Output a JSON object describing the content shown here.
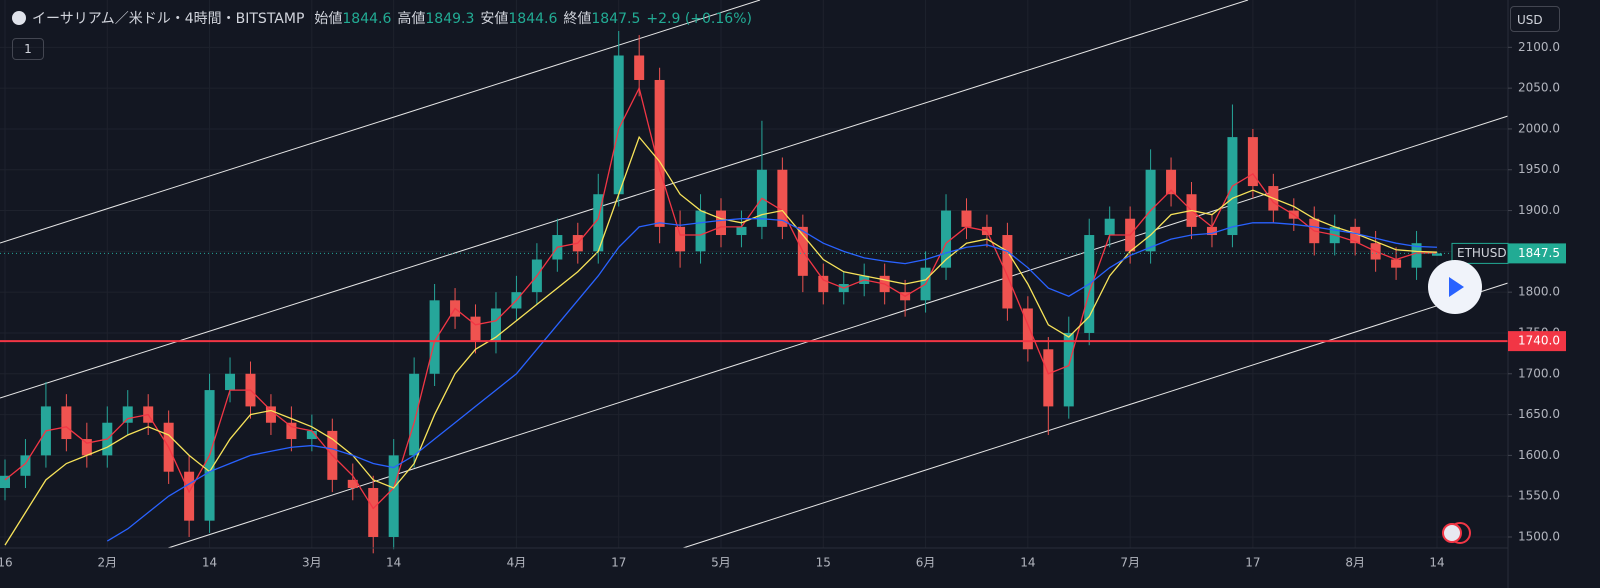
{
  "header": {
    "title": "イーサリアム／米ドル・4時間・BITSTAMP",
    "open_label": "始値",
    "high_label": "高値",
    "low_label": "安値",
    "close_label": "終値",
    "change": "+2.9 (+0.16%)",
    "interval_button": "1"
  },
  "chart_data": {
    "type": "candlestick",
    "categories": [
      "16",
      null,
      null,
      null,
      null,
      "2月",
      null,
      null,
      null,
      null,
      "14",
      null,
      null,
      null,
      null,
      "3月",
      null,
      null,
      null,
      "14",
      null,
      null,
      null,
      null,
      null,
      "4月",
      null,
      null,
      null,
      null,
      "17",
      null,
      null,
      null,
      null,
      "5月",
      null,
      null,
      null,
      null,
      "15",
      null,
      null,
      null,
      null,
      "6月",
      null,
      null,
      null,
      null,
      "14",
      null,
      null,
      null,
      null,
      "7月",
      null,
      null,
      null,
      null,
      null,
      "17",
      null,
      null,
      null,
      null,
      "8月",
      null,
      null,
      null,
      "14"
    ],
    "candles": {
      "up_color": "#26a69a",
      "down_color": "#ef5350",
      "open": [
        1560,
        1575,
        1600,
        1660,
        1620,
        1600,
        1640,
        1660,
        1640,
        1580,
        1520,
        1680,
        1700,
        1660,
        1640,
        1620,
        1630,
        1570,
        1560,
        1500,
        1600,
        1700,
        1790,
        1770,
        1740,
        1780,
        1800,
        1840,
        1870,
        1850,
        1920,
        2090,
        2060,
        1880,
        1850,
        1900,
        1870,
        1880,
        1950,
        1880,
        1820,
        1800,
        1810,
        1820,
        1800,
        1790,
        1830,
        1900,
        1880,
        1870,
        1780,
        1730,
        1660,
        1750,
        1870,
        1890,
        1850,
        1950,
        1920,
        1880,
        1870,
        1990,
        1930,
        1900,
        1890,
        1860,
        1880,
        1860,
        1840,
        1830,
        1844.6
      ],
      "high": [
        1595,
        1620,
        1690,
        1675,
        1640,
        1660,
        1680,
        1675,
        1655,
        1600,
        1700,
        1720,
        1715,
        1675,
        1660,
        1650,
        1645,
        1590,
        1575,
        1620,
        1720,
        1810,
        1805,
        1785,
        1800,
        1820,
        1860,
        1890,
        1885,
        1945,
        2120,
        2115,
        2075,
        1900,
        1920,
        1915,
        1900,
        2010,
        1965,
        1895,
        1835,
        1825,
        1835,
        1835,
        1815,
        1850,
        1920,
        1915,
        1895,
        1885,
        1795,
        1745,
        1770,
        1890,
        1905,
        1905,
        1975,
        1965,
        1935,
        1895,
        2030,
        2000,
        1945,
        1915,
        1905,
        1895,
        1890,
        1875,
        1855,
        1875,
        1849.3
      ],
      "low": [
        1545,
        1560,
        1585,
        1605,
        1585,
        1585,
        1625,
        1625,
        1565,
        1500,
        1505,
        1665,
        1645,
        1625,
        1605,
        1605,
        1555,
        1545,
        1480,
        1485,
        1585,
        1685,
        1755,
        1725,
        1725,
        1765,
        1785,
        1825,
        1835,
        1835,
        1905,
        2040,
        1860,
        1830,
        1835,
        1855,
        1855,
        1865,
        1865,
        1800,
        1785,
        1785,
        1795,
        1785,
        1770,
        1775,
        1815,
        1865,
        1855,
        1765,
        1715,
        1625,
        1645,
        1735,
        1855,
        1835,
        1835,
        1905,
        1865,
        1855,
        1855,
        1915,
        1885,
        1875,
        1845,
        1845,
        1845,
        1825,
        1815,
        1815,
        1844.6
      ],
      "close": [
        1575,
        1600,
        1660,
        1620,
        1600,
        1640,
        1660,
        1640,
        1580,
        1520,
        1680,
        1700,
        1660,
        1640,
        1620,
        1630,
        1570,
        1560,
        1500,
        1600,
        1700,
        1790,
        1770,
        1740,
        1780,
        1800,
        1840,
        1870,
        1850,
        1920,
        2090,
        2060,
        1880,
        1850,
        1900,
        1870,
        1880,
        1950,
        1880,
        1820,
        1800,
        1810,
        1820,
        1800,
        1790,
        1830,
        1900,
        1880,
        1870,
        1780,
        1730,
        1660,
        1750,
        1870,
        1890,
        1850,
        1950,
        1920,
        1880,
        1870,
        1990,
        1930,
        1900,
        1890,
        1860,
        1880,
        1860,
        1840,
        1830,
        1860,
        1847.5
      ]
    },
    "moving_averages": [
      {
        "color": "#f23645",
        "values": [
          1570,
          1590,
          1630,
          1635,
          1615,
          1620,
          1645,
          1650,
          1610,
          1555,
          1600,
          1680,
          1680,
          1655,
          1635,
          1630,
          1600,
          1575,
          1535,
          1560,
          1640,
          1740,
          1780,
          1760,
          1765,
          1790,
          1820,
          1855,
          1860,
          1890,
          2000,
          2050,
          1950,
          1870,
          1870,
          1880,
          1880,
          1915,
          1900,
          1850,
          1815,
          1805,
          1815,
          1810,
          1795,
          1810,
          1860,
          1880,
          1875,
          1820,
          1760,
          1700,
          1710,
          1800,
          1870,
          1870,
          1900,
          1925,
          1900,
          1880,
          1930,
          1945,
          1910,
          1895,
          1875,
          1870,
          1862,
          1850,
          1840,
          1848,
          1848
        ]
      },
      {
        "color": "#f7e35a",
        "values": [
          1490,
          1530,
          1570,
          1590,
          1600,
          1610,
          1625,
          1635,
          1625,
          1600,
          1580,
          1620,
          1650,
          1655,
          1645,
          1635,
          1620,
          1600,
          1570,
          1560,
          1590,
          1650,
          1700,
          1730,
          1745,
          1765,
          1785,
          1805,
          1825,
          1850,
          1920,
          1990,
          1960,
          1920,
          1900,
          1890,
          1885,
          1895,
          1900,
          1870,
          1840,
          1825,
          1820,
          1815,
          1810,
          1815,
          1840,
          1860,
          1865,
          1850,
          1810,
          1760,
          1745,
          1770,
          1820,
          1850,
          1870,
          1895,
          1900,
          1895,
          1915,
          1925,
          1915,
          1905,
          1890,
          1880,
          1872,
          1862,
          1852,
          1850,
          1849
        ]
      },
      {
        "color": "#2962ff",
        "values": [
          null,
          null,
          null,
          null,
          null,
          1495,
          1510,
          1530,
          1550,
          1565,
          1580,
          1590,
          1600,
          1605,
          1610,
          1612,
          1608,
          1600,
          1590,
          1585,
          1600,
          1620,
          1640,
          1660,
          1680,
          1700,
          1730,
          1760,
          1790,
          1820,
          1855,
          1880,
          1885,
          1882,
          1885,
          1888,
          1890,
          1890,
          1888,
          1875,
          1860,
          1850,
          1842,
          1838,
          1835,
          1840,
          1848,
          1855,
          1858,
          1850,
          1830,
          1805,
          1795,
          1810,
          1830,
          1845,
          1855,
          1865,
          1870,
          1872,
          1880,
          1885,
          1885,
          1883,
          1880,
          1876,
          1872,
          1866,
          1860,
          1856,
          1855
        ]
      }
    ],
    "ylim": [
      1486.5,
      2158
    ],
    "yticks": [
      {
        "value": 1500,
        "label": "1500.0"
      },
      {
        "value": 1550,
        "label": "1550.0"
      },
      {
        "value": 1600,
        "label": "1600.0"
      },
      {
        "value": 1650,
        "label": "1650.0"
      },
      {
        "value": 1700,
        "label": "1700.0"
      },
      {
        "value": 1750,
        "label": "1750.0"
      },
      {
        "value": 1800,
        "label": "1800.0"
      },
      {
        "value": 1850,
        "label": "1850.0"
      },
      {
        "value": 1900,
        "label": "1900.0"
      },
      {
        "value": 1950,
        "label": "1950.0"
      },
      {
        "value": 2000,
        "label": "2000.0"
      },
      {
        "value": 2050,
        "label": "2050.0"
      },
      {
        "value": 2100,
        "label": "2100.0"
      }
    ],
    "hline": {
      "value": 1740,
      "label": "1740.0",
      "color": "#f23645"
    },
    "symbol": "ETHUSD",
    "currency": "USD",
    "grid": true
  }
}
